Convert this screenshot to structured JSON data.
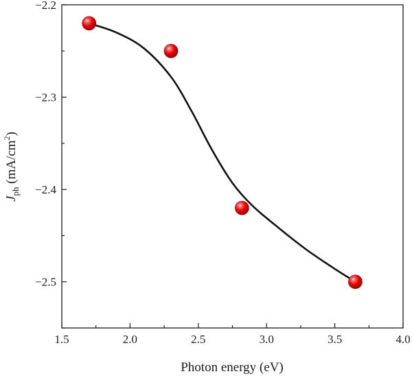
{
  "chart_data": {
    "type": "scatter",
    "xlabel": "Photon energy (eV)",
    "ylabel": {
      "symbol": "J",
      "subscript": "ph",
      "unit_open": " (mA/cm",
      "unit_sup": "2",
      "unit_close": ")"
    },
    "xlim": [
      1.5,
      4.0
    ],
    "ylim": [
      -2.55,
      -2.2
    ],
    "xticks": [
      1.5,
      2.0,
      2.5,
      3.0,
      3.5,
      4.0
    ],
    "xtick_labels": [
      "1.5",
      "2.0",
      "2.5",
      "3.0",
      "3.5",
      "4.0"
    ],
    "yticks": [
      -2.2,
      -2.3,
      -2.4,
      -2.5
    ],
    "ytick_labels": [
      "−2.2",
      "−2.3",
      "−2.4",
      "−2.5"
    ],
    "y_minor_ticks": [
      -2.25,
      -2.35,
      -2.45,
      -2.55
    ],
    "x_minor_ticks": [
      1.75,
      2.25,
      2.75,
      3.25,
      3.75
    ],
    "points": [
      {
        "x": 1.7,
        "y": -2.22
      },
      {
        "x": 2.3,
        "y": -2.25
      },
      {
        "x": 2.82,
        "y": -2.42
      },
      {
        "x": 3.65,
        "y": -2.5
      }
    ],
    "fit_curve": [
      {
        "x": 1.7,
        "y": -2.22
      },
      {
        "x": 1.9,
        "y": -2.23
      },
      {
        "x": 2.1,
        "y": -2.247
      },
      {
        "x": 2.3,
        "y": -2.278
      },
      {
        "x": 2.45,
        "y": -2.315
      },
      {
        "x": 2.6,
        "y": -2.357
      },
      {
        "x": 2.75,
        "y": -2.393
      },
      {
        "x": 2.9,
        "y": -2.418
      },
      {
        "x": 3.1,
        "y": -2.443
      },
      {
        "x": 3.3,
        "y": -2.466
      },
      {
        "x": 3.5,
        "y": -2.486
      },
      {
        "x": 3.65,
        "y": -2.5
      }
    ],
    "marker_color": "#e60000",
    "line_color": "#111111",
    "grid": false,
    "legend": "none"
  }
}
